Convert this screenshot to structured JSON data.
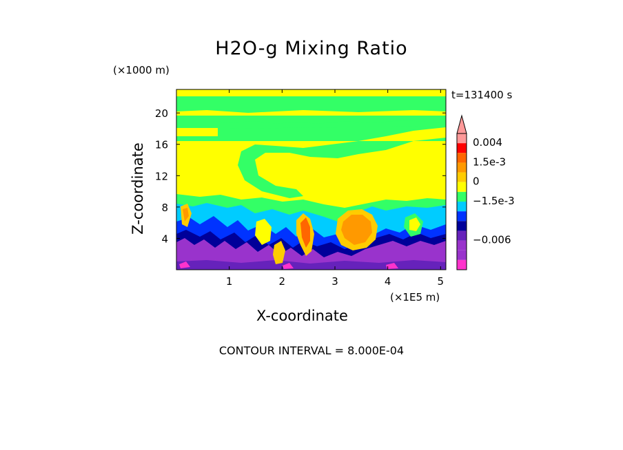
{
  "chart_data": {
    "type": "heatmap",
    "title": "H2O-g Mixing Ratio",
    "xlabel": "X-coordinate",
    "ylabel": "Z-coordinate",
    "x_scale_label": "(×1E5 m)",
    "z_scale_label": "(×1000 m)",
    "time_label": "t=131400 s",
    "contour_interval_label": "CONTOUR INTERVAL = 8.000E-04",
    "xlim": [
      0,
      5.1
    ],
    "ylim": [
      0,
      23
    ],
    "x_ticks": [
      1,
      2,
      3,
      4,
      5
    ],
    "x_tick_labels": [
      "1",
      "2",
      "3",
      "4",
      "5"
    ],
    "y_ticks": [
      4,
      8,
      12,
      16,
      20
    ],
    "y_tick_labels": [
      "4",
      "8",
      "12",
      "16",
      "20"
    ],
    "colorbar": {
      "levels": [
        {
          "value": -0.0072,
          "color": "#ff33cc"
        },
        {
          "value": -0.0064,
          "color": "#9933cc"
        },
        {
          "value": -0.0056,
          "color": "#9933cc"
        },
        {
          "value": -0.0048,
          "color": "#6622bb"
        },
        {
          "value": -0.0016,
          "color": "#000099"
        },
        {
          "value": -0.0008,
          "color": "#0033ff"
        },
        {
          "value": 0.0,
          "color": "#00ccff"
        },
        {
          "value": 0.0008,
          "color": "#33ff66"
        },
        {
          "value": 0.0016,
          "color": "#ffff00"
        },
        {
          "value": 0.0024,
          "color": "#ffcc00"
        },
        {
          "value": 0.0032,
          "color": "#ff9900"
        },
        {
          "value": 0.004,
          "color": "#ff6600"
        },
        {
          "value": 0.0048,
          "color": "#ff0000"
        },
        {
          "value": 0.0056,
          "color": "#ff9999"
        }
      ],
      "tick_labels": [
        "0.004",
        "1.5e-3",
        "0",
        "−1.5e-3",
        "−0.006"
      ]
    },
    "field_description_levels": {
      "upper_band_colors": [
        "#ffff00",
        "#33ff66"
      ],
      "lower_band_colors": [
        "#9933cc",
        "#000099",
        "#0033ff",
        "#00ccff",
        "#ffcc00",
        "#ff6600"
      ]
    }
  }
}
